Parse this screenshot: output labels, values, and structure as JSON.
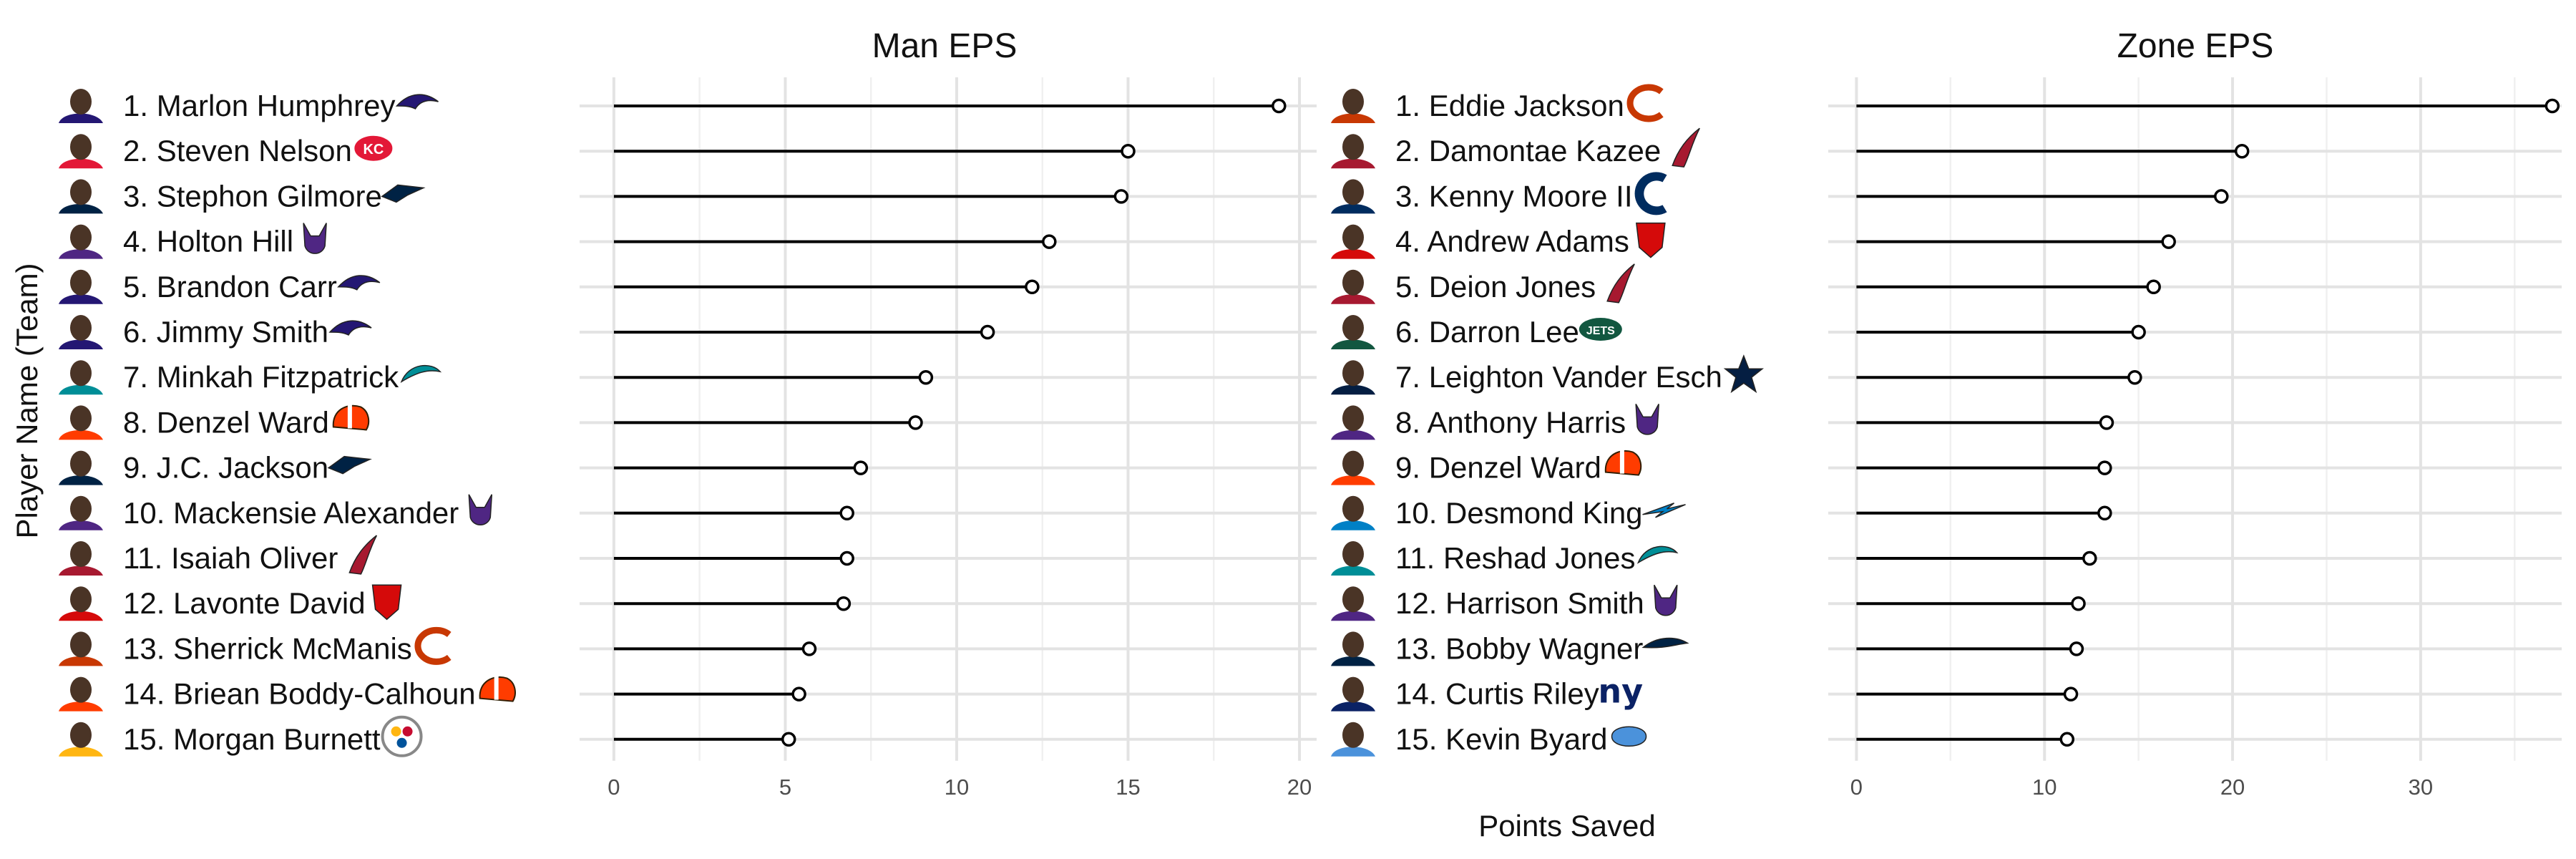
{
  "chart_data": {
    "type": "lollipop",
    "xlabel": "Points Saved",
    "ylabel": "Player Name (Team)",
    "grid": true,
    "panels": [
      {
        "title": "Man EPS",
        "xlim": [
          -1,
          20.5
        ],
        "xticks": [
          0,
          5,
          10,
          15,
          20
        ],
        "tick_labels": [
          "0",
          "5",
          "10",
          "15",
          "20"
        ],
        "players": [
          {
            "label": "1. Marlon Humphrey",
            "value": 19.4,
            "team": "ravens"
          },
          {
            "label": "2. Steven Nelson",
            "value": 15.0,
            "team": "chiefs"
          },
          {
            "label": "3. Stephon Gilmore",
            "value": 14.8,
            "team": "patriots"
          },
          {
            "label": "4. Holton Hill",
            "value": 12.7,
            "team": "vikings"
          },
          {
            "label": "5. Brandon Carr",
            "value": 12.2,
            "team": "ravens"
          },
          {
            "label": "6. Jimmy Smith",
            "value": 10.9,
            "team": "ravens"
          },
          {
            "label": "7. Minkah Fitzpatrick",
            "value": 9.1,
            "team": "dolphins"
          },
          {
            "label": "8. Denzel Ward",
            "value": 8.8,
            "team": "browns"
          },
          {
            "label": "9. J.C. Jackson",
            "value": 7.2,
            "team": "patriots"
          },
          {
            "label": "10. Mackensie Alexander",
            "value": 6.8,
            "team": "vikings"
          },
          {
            "label": "11. Isaiah Oliver",
            "value": 6.8,
            "team": "falcons"
          },
          {
            "label": "12. Lavonte David",
            "value": 6.7,
            "team": "buccaneers"
          },
          {
            "label": "13. Sherrick McManis",
            "value": 5.7,
            "team": "bears"
          },
          {
            "label": "14. Briean Boddy-Calhoun",
            "value": 5.4,
            "team": "browns"
          },
          {
            "label": "15. Morgan Burnett",
            "value": 5.1,
            "team": "steelers"
          }
        ]
      },
      {
        "title": "Zone EPS",
        "xlim": [
          -1.5,
          37.5
        ],
        "xticks": [
          0,
          10,
          20,
          30
        ],
        "tick_labels": [
          "0",
          "10",
          "20",
          "30"
        ],
        "players": [
          {
            "label": "1. Eddie Jackson",
            "value": 37.0,
            "team": "bears"
          },
          {
            "label": "2. Damontae Kazee",
            "value": 20.5,
            "team": "falcons"
          },
          {
            "label": "3. Kenny Moore II",
            "value": 19.4,
            "team": "colts"
          },
          {
            "label": "4. Andrew Adams",
            "value": 16.6,
            "team": "buccaneers"
          },
          {
            "label": "5. Deion Jones",
            "value": 15.8,
            "team": "falcons"
          },
          {
            "label": "6. Darron Lee",
            "value": 15.0,
            "team": "jets"
          },
          {
            "label": "7. Leighton Vander Esch",
            "value": 14.8,
            "team": "cowboys"
          },
          {
            "label": "8. Anthony Harris",
            "value": 13.3,
            "team": "vikings"
          },
          {
            "label": "9. Denzel Ward",
            "value": 13.2,
            "team": "browns"
          },
          {
            "label": "10. Desmond King",
            "value": 13.2,
            "team": "chargers"
          },
          {
            "label": "11. Reshad Jones",
            "value": 12.4,
            "team": "dolphins"
          },
          {
            "label": "12. Harrison Smith",
            "value": 11.8,
            "team": "vikings"
          },
          {
            "label": "13. Bobby Wagner",
            "value": 11.7,
            "team": "seahawks"
          },
          {
            "label": "14. Curtis Riley",
            "value": 11.4,
            "team": "giants"
          },
          {
            "label": "15. Kevin Byard",
            "value": 11.2,
            "team": "titans"
          }
        ]
      }
    ]
  },
  "team_colors": {
    "ravens": "#241773",
    "chiefs": "#E31837",
    "patriots": "#002244",
    "vikings": "#4F2683",
    "dolphins": "#008E97",
    "browns": "#FF3C00",
    "falcons": "#A71930",
    "buccaneers": "#D50A0A",
    "bears": "#C83803",
    "steelers": "#FFB612",
    "colts": "#002C5F",
    "jets": "#125740",
    "cowboys": "#041E42",
    "chargers": "#0080C6",
    "seahawks": "#002244",
    "giants": "#0B2265",
    "titans": "#4B92DB"
  }
}
